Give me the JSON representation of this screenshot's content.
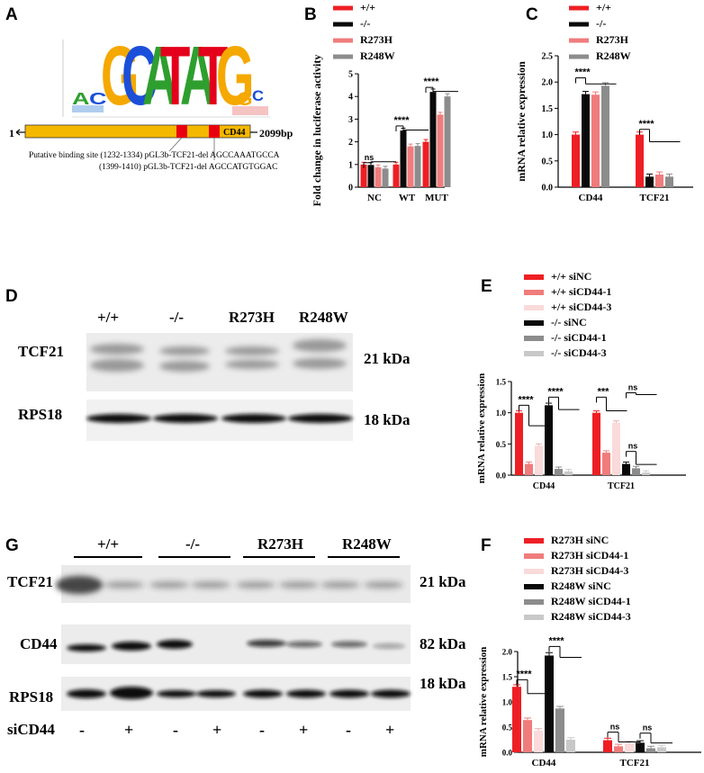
{
  "panel_letters": {
    "a": "A",
    "b": "B",
    "c": "C",
    "d": "D",
    "e": "E",
    "g": "G",
    "f": "F"
  },
  "colors": {
    "red": "#ee1f24",
    "black": "#0a0a0a",
    "pink": "#f07c7c",
    "gray": "#8c8c8c",
    "lightpink": "#fadada",
    "lightgray": "#c8c8c8",
    "gene": "#f5b800",
    "site": "#e8000e"
  },
  "panel_a": {
    "motif_letters": [
      "A",
      "C",
      "G",
      "C",
      "A",
      "T",
      "A",
      "T",
      "G",
      "G",
      "C"
    ],
    "gene_label": "CD44",
    "start_label": "1",
    "end_label": "2099bp",
    "site1": "Putative binding site (1232-1334) pGL3b-TCF21-del AGCCAAATGCCA",
    "site2": "(1399-1410) pGL3b-TCF21-del AGCCATGTGGAC"
  },
  "chart_data": [
    {
      "panel": "B",
      "type": "bar",
      "ylabel": "Fold change in luciferase activity",
      "categories": [
        "NC",
        "WT",
        "MUT"
      ],
      "ylim": [
        0,
        5
      ],
      "yticks": [
        0,
        1,
        2,
        3,
        4,
        5
      ],
      "series": [
        {
          "name": "+/+",
          "values": [
            1.0,
            1.0,
            2.0
          ]
        },
        {
          "name": "-/-",
          "values": [
            0.98,
            2.5,
            4.2
          ]
        },
        {
          "name": "R273H",
          "values": [
            0.88,
            1.8,
            3.2
          ]
        },
        {
          "name": "R248W",
          "values": [
            0.82,
            1.82,
            4.0
          ]
        }
      ],
      "annotations": [
        "ns",
        "****",
        "****"
      ]
    },
    {
      "panel": "C",
      "type": "bar",
      "ylabel": "mRNA relative expression",
      "categories": [
        "CD44",
        "TCF21"
      ],
      "ylim": [
        0,
        2.5
      ],
      "yticks": [
        0.0,
        0.5,
        1.0,
        1.5,
        2.0,
        2.5
      ],
      "series": [
        {
          "name": "+/+",
          "values": [
            1.0,
            1.0
          ]
        },
        {
          "name": "-/-",
          "values": [
            1.77,
            0.2
          ]
        },
        {
          "name": "R273H",
          "values": [
            1.76,
            0.24
          ]
        },
        {
          "name": "R248W",
          "values": [
            1.93,
            0.2
          ]
        }
      ],
      "annotations": [
        "****",
        "****"
      ]
    },
    {
      "panel": "E",
      "type": "bar",
      "ylabel": "mRNA relative expression",
      "categories": [
        "CD44",
        "TCF21"
      ],
      "ylim": [
        0,
        1.5
      ],
      "yticks": [
        0.0,
        0.5,
        1.0,
        1.5
      ],
      "series": [
        {
          "name": "+/+ siNC",
          "values": [
            1.0,
            1.0
          ]
        },
        {
          "name": "+/+ siCD44-1",
          "values": [
            0.18,
            0.36
          ]
        },
        {
          "name": "+/+ siCD44-3",
          "values": [
            0.47,
            0.84
          ]
        },
        {
          "name": "-/- siNC",
          "values": [
            1.12,
            0.18
          ]
        },
        {
          "name": "-/- siCD44-1",
          "values": [
            0.1,
            0.11
          ]
        },
        {
          "name": "-/- siCD44-3",
          "values": [
            0.06,
            0.04
          ]
        }
      ],
      "annotations": [
        "****",
        "****",
        "***",
        "ns",
        "ns"
      ]
    },
    {
      "panel": "F",
      "type": "bar",
      "ylabel": "mRNA relative expression",
      "categories": [
        "CD44",
        "TCF21"
      ],
      "ylim": [
        0,
        2.0
      ],
      "yticks": [
        0.0,
        0.5,
        1.0,
        1.5,
        2.0
      ],
      "series": [
        {
          "name": "R273H siNC",
          "values": [
            1.3,
            0.24
          ]
        },
        {
          "name": "R273H siCD44-1",
          "values": [
            0.64,
            0.12
          ]
        },
        {
          "name": "R273H siCD44-3",
          "values": [
            0.43,
            0.18
          ]
        },
        {
          "name": "R248W siNC",
          "values": [
            1.92,
            0.19
          ]
        },
        {
          "name": "R248W siCD44-1",
          "values": [
            0.87,
            0.08
          ]
        },
        {
          "name": "R248W siCD44-3",
          "values": [
            0.25,
            0.1
          ]
        }
      ],
      "annotations": [
        "****",
        "****",
        "ns",
        "ns"
      ]
    }
  ],
  "panel_d": {
    "lanes": [
      "+/+",
      "-/-",
      "R273H",
      "R248W"
    ],
    "rows": [
      {
        "label": "TCF21",
        "kda": "21 kDa"
      },
      {
        "label": "RPS18",
        "kda": "18 kDa"
      }
    ]
  },
  "panel_g": {
    "groups": [
      "+/+",
      "-/-",
      "R273H",
      "R248W"
    ],
    "rows": [
      {
        "label": "TCF21",
        "kda": "21 kDa"
      },
      {
        "label": "CD44",
        "kda": "82 kDa"
      },
      {
        "label": "RPS18",
        "kda": "18 kDa"
      }
    ],
    "sicd44_label": "siCD44",
    "signs": [
      "-",
      "+",
      "-",
      "+",
      "-",
      "+",
      "-",
      "+"
    ]
  }
}
